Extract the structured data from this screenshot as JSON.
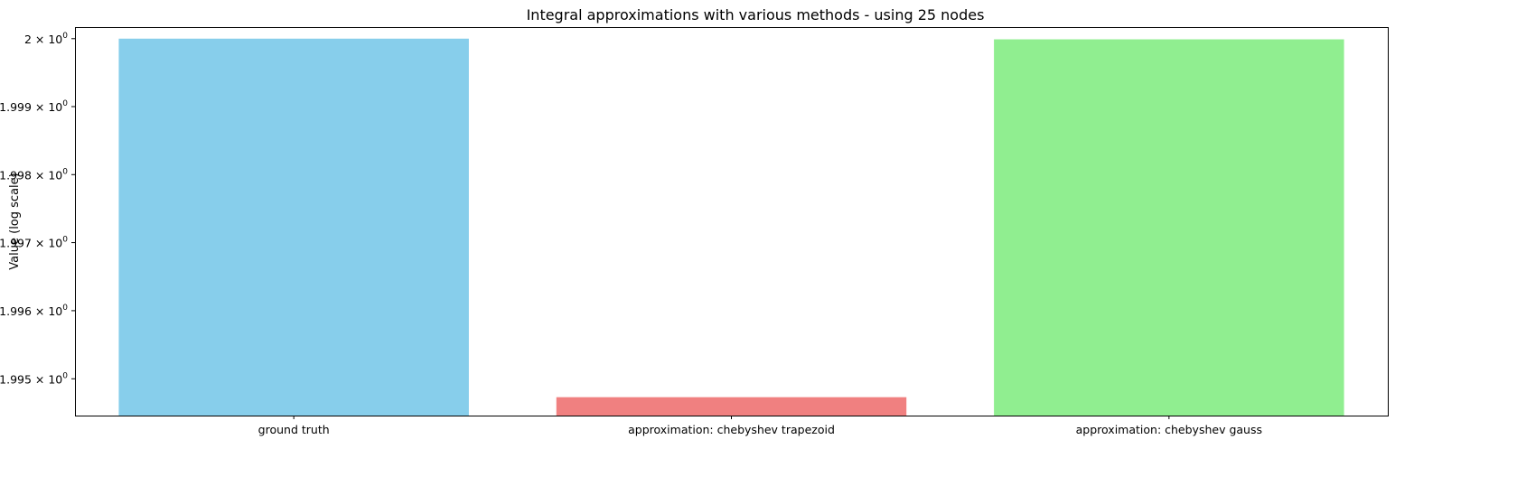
{
  "chart_data": {
    "type": "bar",
    "title": "Integral approximations with various methods - using 25 nodes",
    "xlabel": "",
    "ylabel": "Value (log scale)",
    "yscale": "log",
    "ylim": [
      1.99446,
      2.00017
    ],
    "categories": [
      "ground truth",
      "approximation: chebyshev trapezoid",
      "approximation: chebyshev gauss"
    ],
    "values": [
      2.0,
      1.99473,
      1.99999
    ],
    "colors": [
      "#87ceeb",
      "#f08080",
      "#90ee90"
    ],
    "yticks": [
      {
        "value": 1.995,
        "base": "1.995",
        "exp": "0"
      },
      {
        "value": 1.996,
        "base": "1.996",
        "exp": "0"
      },
      {
        "value": 1.997,
        "base": "1.997",
        "exp": "0"
      },
      {
        "value": 1.998,
        "base": "1.998",
        "exp": "0"
      },
      {
        "value": 1.999,
        "base": "1.999",
        "exp": "0"
      },
      {
        "value": 2.0,
        "base": "2",
        "exp": "0"
      }
    ],
    "times_symbol": "×",
    "log_base": "10",
    "grid": false,
    "legend": false
  }
}
